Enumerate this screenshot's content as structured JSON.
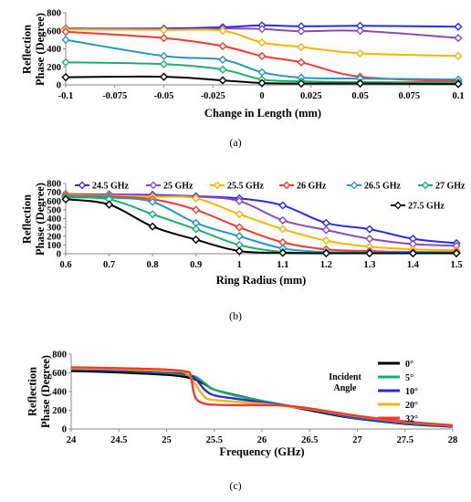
{
  "chart_data": [
    {
      "type": "line",
      "caption": "(a)",
      "xlabel": "Change in Length (mm)",
      "ylabel": "Reflection Phase (Degree)",
      "xlim": [
        -0.1,
        0.1
      ],
      "ylim": [
        0,
        800
      ],
      "xticks": [
        "-0.1",
        "-0.075",
        "-0.05",
        "-0.025",
        "0",
        "0.025",
        "0.05",
        "0.075",
        "0.1"
      ],
      "yticks": [
        "0",
        "200",
        "400",
        "600",
        "800"
      ],
      "grid": false,
      "legend": "none",
      "series": [
        {
          "color": "#2a2ae8",
          "x": [
            -0.1,
            -0.05,
            -0.02,
            0,
            0.02,
            0.05,
            0.1
          ],
          "y": [
            625,
            625,
            640,
            660,
            650,
            655,
            645
          ]
        },
        {
          "color": "#8a4bb8",
          "x": [
            -0.1,
            -0.05,
            -0.02,
            0,
            0.02,
            0.05,
            0.1
          ],
          "y": [
            620,
            615,
            625,
            620,
            595,
            600,
            520
          ]
        },
        {
          "color": "#f7b500",
          "x": [
            -0.1,
            -0.05,
            -0.02,
            0,
            0.02,
            0.05,
            0.1
          ],
          "y": [
            615,
            610,
            600,
            470,
            420,
            350,
            320
          ]
        },
        {
          "color": "#f03a30",
          "x": [
            -0.1,
            -0.05,
            -0.02,
            0,
            0.02,
            0.05,
            0.1
          ],
          "y": [
            590,
            520,
            430,
            320,
            250,
            90,
            40
          ]
        },
        {
          "color": "#2a92c8",
          "x": [
            -0.1,
            -0.05,
            -0.02,
            0,
            0.02,
            0.05,
            0.1
          ],
          "y": [
            500,
            320,
            280,
            140,
            80,
            70,
            60
          ]
        },
        {
          "color": "#1bb06a",
          "x": [
            -0.1,
            -0.05,
            -0.02,
            0,
            0.02,
            0.05,
            0.1
          ],
          "y": [
            250,
            230,
            170,
            60,
            40,
            30,
            30
          ]
        },
        {
          "color": "#000000",
          "x": [
            -0.1,
            -0.05,
            -0.02,
            0,
            0.02,
            0.05,
            0.1
          ],
          "y": [
            85,
            90,
            50,
            20,
            15,
            15,
            10
          ]
        }
      ]
    },
    {
      "type": "line",
      "caption": "(b)",
      "xlabel": "Ring Radius (mm)",
      "ylabel": "Reflection Phase (Degree)",
      "xlim": [
        0.6,
        1.5
      ],
      "ylim": [
        0,
        800
      ],
      "xticks": [
        "0.6",
        "0.7",
        "0.8",
        "0.9",
        "1",
        "1.1",
        "1.2",
        "1.3",
        "1.4",
        "1.5"
      ],
      "yticks": [
        "0",
        "100",
        "200",
        "300",
        "400",
        "500",
        "600",
        "700",
        "800"
      ],
      "grid": false,
      "legend": "top",
      "series": [
        {
          "name": "24.5 GHz",
          "color": "#2a2ae8",
          "x": [
            0.6,
            0.7,
            0.8,
            0.9,
            1.0,
            1.1,
            1.2,
            1.3,
            1.4,
            1.5
          ],
          "y": [
            680,
            675,
            670,
            655,
            630,
            550,
            350,
            280,
            170,
            120
          ]
        },
        {
          "name": "25 GHz",
          "color": "#8a4bb8",
          "x": [
            0.6,
            0.7,
            0.8,
            0.9,
            1.0,
            1.1,
            1.2,
            1.3,
            1.4,
            1.5
          ],
          "y": [
            675,
            670,
            660,
            650,
            600,
            380,
            270,
            170,
            110,
            90
          ]
        },
        {
          "name": "25.5 GHz",
          "color": "#f7b500",
          "x": [
            0.6,
            0.7,
            0.8,
            0.9,
            1.0,
            1.1,
            1.2,
            1.3,
            1.4,
            1.5
          ],
          "y": [
            670,
            660,
            650,
            630,
            450,
            280,
            150,
            80,
            50,
            40
          ]
        },
        {
          "name": "26 GHz",
          "color": "#f03a30",
          "x": [
            0.6,
            0.7,
            0.8,
            0.9,
            1.0,
            1.1,
            1.2,
            1.3,
            1.4,
            1.5
          ],
          "y": [
            660,
            650,
            620,
            500,
            300,
            130,
            50,
            30,
            20,
            20
          ]
        },
        {
          "name": "26.5 GHz",
          "color": "#2a92c8",
          "x": [
            0.6,
            0.7,
            0.8,
            0.9,
            1.0,
            1.1,
            1.2,
            1.3,
            1.4,
            1.5
          ],
          "y": [
            650,
            640,
            590,
            350,
            200,
            60,
            20,
            15,
            10,
            10
          ]
        },
        {
          "name": "27 GHz",
          "color": "#1bb06a",
          "x": [
            0.6,
            0.7,
            0.8,
            0.9,
            1.0,
            1.1,
            1.2,
            1.3,
            1.4,
            1.5
          ],
          "y": [
            640,
            620,
            450,
            280,
            100,
            20,
            10,
            5,
            5,
            5
          ]
        },
        {
          "name": "27.5 GHz",
          "color": "#000000",
          "x": [
            0.6,
            0.7,
            0.8,
            0.9,
            1.0,
            1.1,
            1.2,
            1.3,
            1.4,
            1.5
          ],
          "y": [
            620,
            560,
            310,
            160,
            30,
            10,
            5,
            5,
            5,
            5
          ]
        }
      ]
    },
    {
      "type": "line",
      "caption": "(c)",
      "xlabel": "Frequency (GHz)",
      "ylabel": "Reflection Phase (Degree)",
      "xlim": [
        24,
        28
      ],
      "ylim": [
        0,
        800
      ],
      "xticks": [
        "24",
        "24.5",
        "25",
        "25.5",
        "26",
        "26.5",
        "27",
        "27.5",
        "28"
      ],
      "yticks": [
        "0",
        "200",
        "400",
        "600",
        "800"
      ],
      "grid": false,
      "legend": "right",
      "legend_title": [
        "Incident",
        "Angle"
      ],
      "series": [
        {
          "name": "0°",
          "color": "#000000",
          "x": [
            24,
            24.5,
            25,
            25.2,
            25.3,
            25.4,
            25.5,
            25.75,
            26,
            26.25,
            26.5,
            26.75,
            27,
            27.5,
            28
          ],
          "y": [
            620,
            605,
            580,
            555,
            530,
            480,
            420,
            355,
            300,
            250,
            200,
            150,
            110,
            55,
            25
          ]
        },
        {
          "name": "5°",
          "color": "#1bb06a",
          "x": [
            24,
            24.5,
            25,
            25.2,
            25.3,
            25.4,
            25.5,
            25.75,
            26,
            26.25,
            26.5,
            26.75,
            27,
            27.5,
            28
          ],
          "y": [
            640,
            625,
            600,
            580,
            560,
            490,
            420,
            350,
            300,
            255,
            210,
            160,
            115,
            60,
            30
          ]
        },
        {
          "name": "10°",
          "color": "#2a2ae8",
          "x": [
            24,
            24.5,
            25,
            25.2,
            25.3,
            25.4,
            25.5,
            25.75,
            26,
            26.25,
            26.5,
            26.75,
            27,
            27.5,
            28
          ],
          "y": [
            645,
            630,
            610,
            590,
            540,
            420,
            360,
            320,
            285,
            250,
            210,
            165,
            120,
            65,
            30
          ]
        },
        {
          "name": "20°",
          "color": "#f7b500",
          "x": [
            24,
            24.5,
            25,
            25.2,
            25.3,
            25.4,
            25.5,
            25.75,
            26,
            26.25,
            26.5,
            26.75,
            27,
            27.5,
            28
          ],
          "y": [
            650,
            640,
            620,
            600,
            480,
            340,
            310,
            290,
            270,
            245,
            215,
            175,
            135,
            75,
            35
          ]
        },
        {
          "name": "32°",
          "color": "#f03a30",
          "x": [
            24,
            24.5,
            25,
            25.2,
            25.25,
            25.3,
            25.4,
            25.5,
            25.75,
            26,
            26.25,
            26.5,
            26.75,
            27,
            27.5,
            28
          ],
          "y": [
            660,
            650,
            635,
            615,
            580,
            340,
            270,
            260,
            255,
            255,
            250,
            220,
            180,
            140,
            80,
            40
          ]
        }
      ]
    }
  ]
}
